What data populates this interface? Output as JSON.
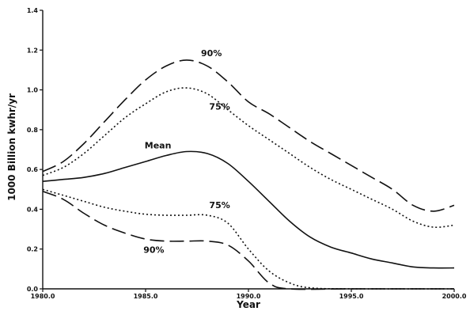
{
  "chart_data": {
    "type": "line",
    "title": "",
    "xlabel": "Year",
    "ylabel": "1000 Billion kwhr/yr",
    "xlim": [
      1980,
      2000
    ],
    "ylim": [
      0,
      1.4
    ],
    "x_ticks": [
      1980,
      1985,
      1990,
      1995,
      2000
    ],
    "x_tick_labels": [
      "1980.0",
      "1985.0",
      "1990.0",
      "1995.0",
      "2000.0"
    ],
    "y_ticks": [
      0,
      0.2,
      0.4,
      0.6,
      0.8,
      1.0,
      1.2,
      1.4
    ],
    "y_tick_labels": [
      "0.0",
      "0.2",
      "0.4",
      "0.6",
      "0.8",
      "1.0",
      "1.2",
      "1.4"
    ],
    "grid": false,
    "series": [
      {
        "id": "upper90",
        "style": "long-dash",
        "points": [
          [
            1980,
            0.59
          ],
          [
            1981,
            0.64
          ],
          [
            1982,
            0.73
          ],
          [
            1983,
            0.84
          ],
          [
            1984,
            0.95
          ],
          [
            1985,
            1.05
          ],
          [
            1986,
            1.12
          ],
          [
            1987,
            1.15
          ],
          [
            1988,
            1.12
          ],
          [
            1989,
            1.04
          ],
          [
            1990,
            0.94
          ],
          [
            1991,
            0.88
          ],
          [
            1992,
            0.81
          ],
          [
            1993,
            0.74
          ],
          [
            1994,
            0.68
          ],
          [
            1995,
            0.62
          ],
          [
            1996,
            0.56
          ],
          [
            1997,
            0.5
          ],
          [
            1998,
            0.42
          ],
          [
            1999,
            0.39
          ],
          [
            2000,
            0.42
          ]
        ]
      },
      {
        "id": "upper75",
        "style": "dotted",
        "points": [
          [
            1980,
            0.57
          ],
          [
            1981,
            0.61
          ],
          [
            1982,
            0.68
          ],
          [
            1983,
            0.77
          ],
          [
            1984,
            0.86
          ],
          [
            1985,
            0.93
          ],
          [
            1986,
            0.99
          ],
          [
            1987,
            1.01
          ],
          [
            1988,
            0.98
          ],
          [
            1989,
            0.9
          ],
          [
            1990,
            0.82
          ],
          [
            1991,
            0.75
          ],
          [
            1992,
            0.68
          ],
          [
            1993,
            0.61
          ],
          [
            1994,
            0.55
          ],
          [
            1995,
            0.5
          ],
          [
            1996,
            0.45
          ],
          [
            1997,
            0.4
          ],
          [
            1998,
            0.34
          ],
          [
            1999,
            0.31
          ],
          [
            2000,
            0.32
          ]
        ]
      },
      {
        "id": "mean",
        "style": "solid",
        "points": [
          [
            1980,
            0.54
          ],
          [
            1981,
            0.55
          ],
          [
            1982,
            0.56
          ],
          [
            1983,
            0.58
          ],
          [
            1984,
            0.61
          ],
          [
            1985,
            0.64
          ],
          [
            1986,
            0.67
          ],
          [
            1987,
            0.69
          ],
          [
            1988,
            0.68
          ],
          [
            1989,
            0.63
          ],
          [
            1990,
            0.54
          ],
          [
            1991,
            0.44
          ],
          [
            1992,
            0.34
          ],
          [
            1993,
            0.26
          ],
          [
            1994,
            0.21
          ],
          [
            1995,
            0.18
          ],
          [
            1996,
            0.15
          ],
          [
            1997,
            0.13
          ],
          [
            1998,
            0.11
          ],
          [
            1999,
            0.105
          ],
          [
            2000,
            0.105
          ]
        ]
      },
      {
        "id": "lower75",
        "style": "dotted",
        "points": [
          [
            1980,
            0.5
          ],
          [
            1981,
            0.47
          ],
          [
            1982,
            0.44
          ],
          [
            1983,
            0.41
          ],
          [
            1984,
            0.39
          ],
          [
            1985,
            0.375
          ],
          [
            1986,
            0.37
          ],
          [
            1987,
            0.37
          ],
          [
            1988,
            0.37
          ],
          [
            1989,
            0.33
          ],
          [
            1990,
            0.2
          ],
          [
            1991,
            0.09
          ],
          [
            1992,
            0.03
          ],
          [
            1993,
            0.005
          ],
          [
            1995,
            0
          ],
          [
            2000,
            0
          ]
        ]
      },
      {
        "id": "lower90",
        "style": "long-dash",
        "points": [
          [
            1980,
            0.49
          ],
          [
            1981,
            0.45
          ],
          [
            1982,
            0.38
          ],
          [
            1983,
            0.32
          ],
          [
            1984,
            0.28
          ],
          [
            1985,
            0.25
          ],
          [
            1986,
            0.24
          ],
          [
            1987,
            0.24
          ],
          [
            1988,
            0.24
          ],
          [
            1989,
            0.22
          ],
          [
            1990,
            0.14
          ],
          [
            1991,
            0.03
          ],
          [
            1992,
            0.0
          ],
          [
            1995,
            0
          ],
          [
            2000,
            0
          ]
        ]
      }
    ],
    "annotations": [
      {
        "text": "90%",
        "x": 1988.2,
        "y": 1.17
      },
      {
        "text": "75%",
        "x": 1988.6,
        "y": 0.9
      },
      {
        "text": "Mean",
        "x": 1985.6,
        "y": 0.705
      },
      {
        "text": "75%",
        "x": 1988.6,
        "y": 0.405
      },
      {
        "text": "90%",
        "x": 1985.4,
        "y": 0.18
      }
    ]
  }
}
